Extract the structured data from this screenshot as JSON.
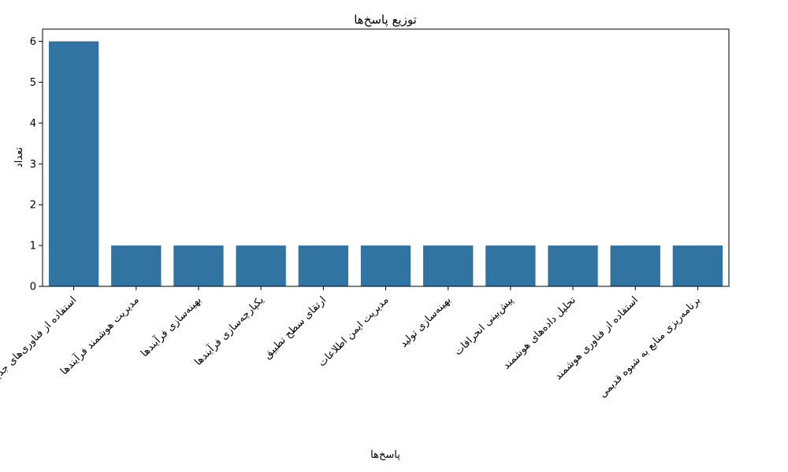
{
  "chart_data": {
    "type": "bar",
    "title": "توزیع پاسخ‌ها",
    "xlabel": "پاسخ‌ها",
    "ylabel": "تعداد",
    "categories": [
      "استفاده از فناوری‌های جدید",
      "مدیریت هوشمند فرآیندها",
      "بهینه‌سازی فرآیندها",
      "یکپارچه‌سازی فرآیندها",
      "ارتقای سطح تطبیق",
      "مدیریت ایمن اطلاعات",
      "بهینه‌سازی تولید",
      "پیش‌بینی انحرافات",
      "تحلیل داده‌های هوشمند",
      "استفاده از فناوری هوشمند",
      "برنامه‌ریزی منابع به شیوه قدیمی"
    ],
    "values": [
      6,
      1,
      1,
      1,
      1,
      1,
      1,
      1,
      1,
      1,
      1
    ],
    "ylim": [
      0,
      6.3
    ],
    "yticks": [
      0,
      1,
      2,
      3,
      4,
      5,
      6
    ],
    "bar_color": "#3274a1",
    "grid": false,
    "legend": "none"
  }
}
